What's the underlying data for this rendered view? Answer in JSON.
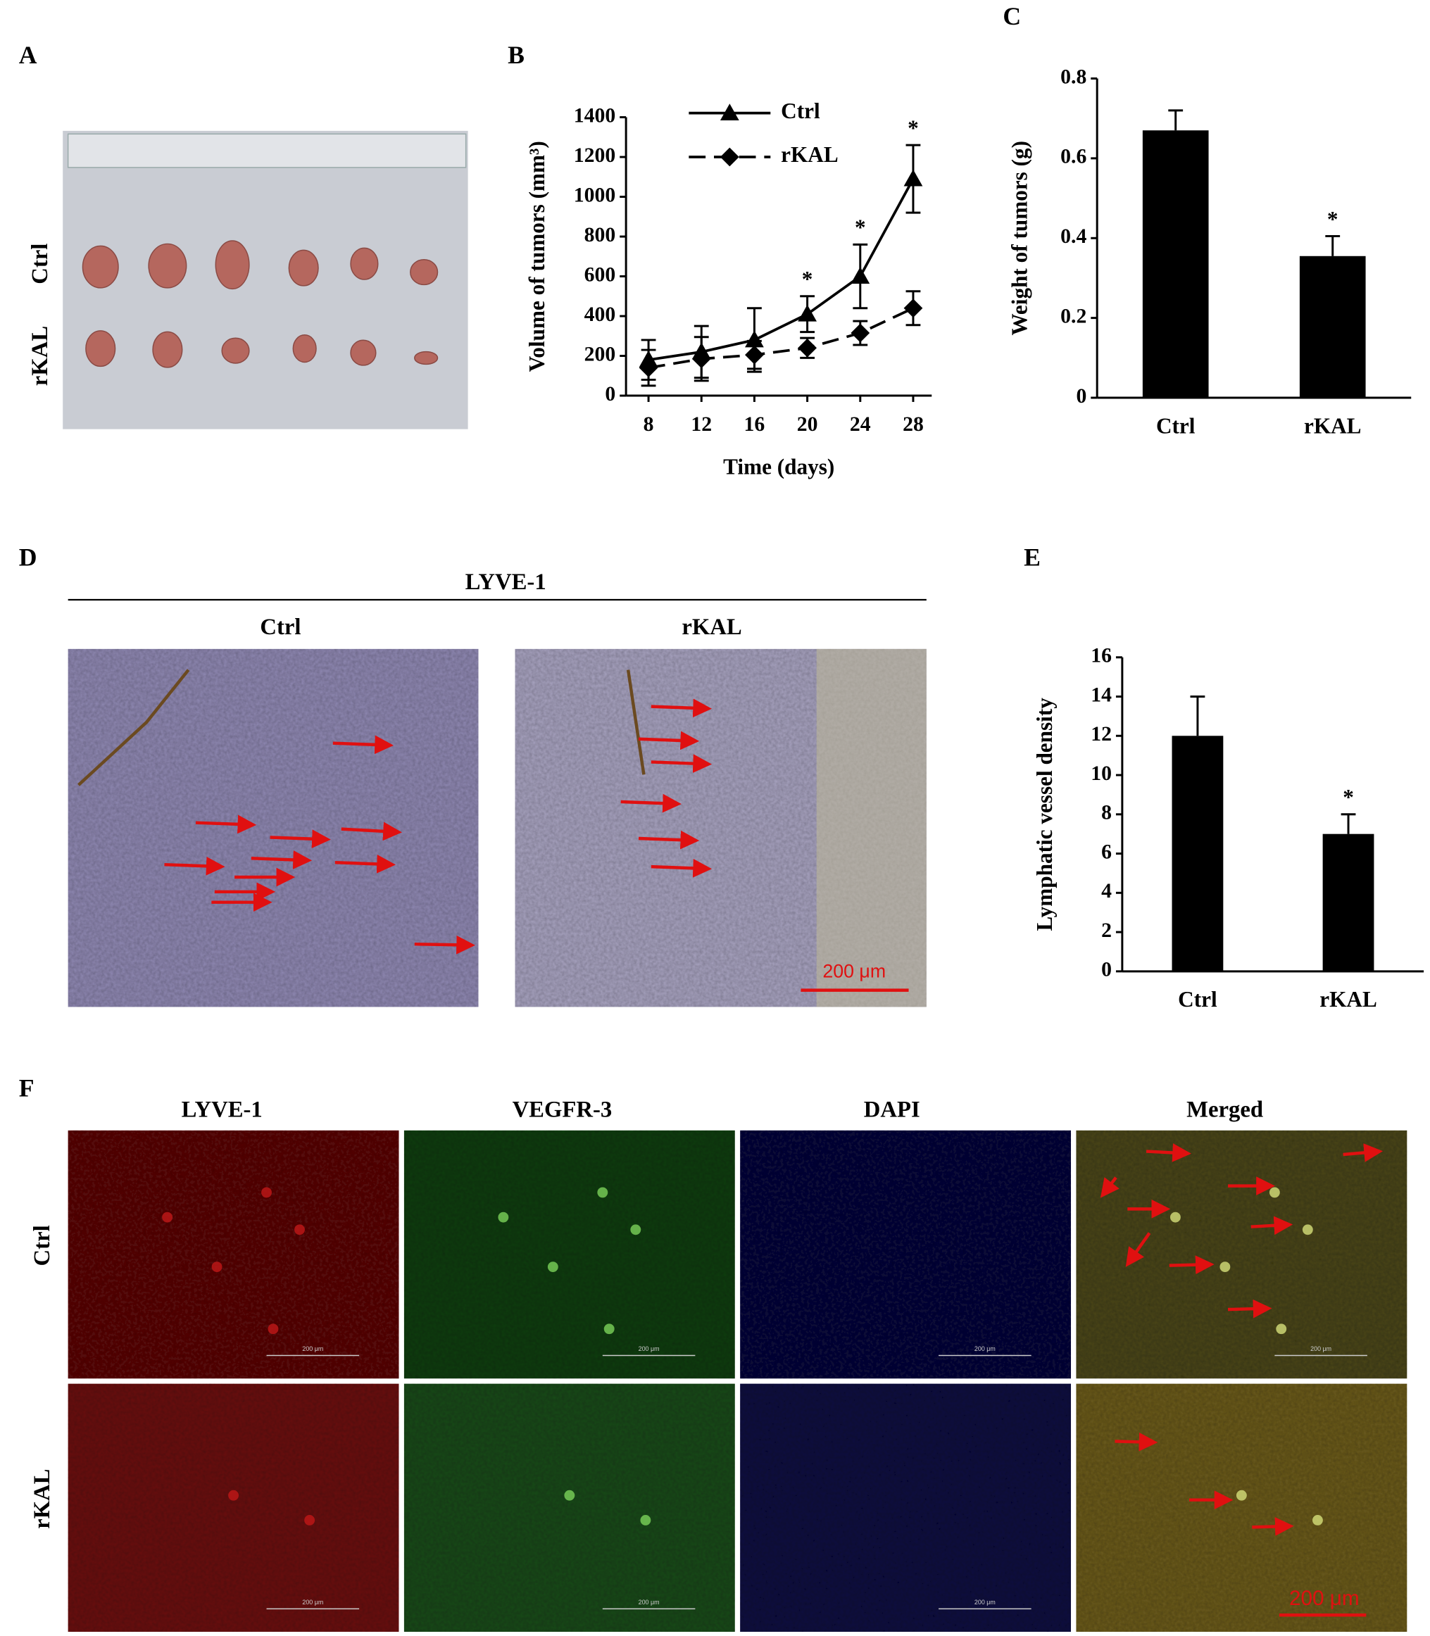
{
  "figure": {
    "panel_labels": [
      "A",
      "B",
      "C",
      "D",
      "E",
      "F"
    ],
    "panel_a": {
      "row_labels": [
        "Ctrl",
        "rKAL"
      ]
    },
    "panel_d": {
      "title": "LYVE-1",
      "column_labels": [
        "Ctrl",
        "rKAL"
      ],
      "scale_bar": "200 μm"
    },
    "panel_f": {
      "column_labels": [
        "LYVE-1",
        "VEGFR-3",
        "DAPI",
        "Merged"
      ],
      "row_labels": [
        "Ctrl",
        "rKAL"
      ],
      "scale_bar": "200 μm",
      "small_scale_bar": "200 μm"
    }
  },
  "chart_data": [
    {
      "type": "line",
      "x": [
        8,
        12,
        16,
        20,
        24,
        28
      ],
      "xlim": [
        6.3,
        29.4
      ],
      "xticks": [
        8,
        12,
        16,
        20,
        24,
        28
      ],
      "ylim": [
        0,
        1400
      ],
      "yticks": [
        0,
        200,
        400,
        600,
        800,
        1000,
        1200,
        1400
      ],
      "xlabel": "Time (days)",
      "ylabel": "Volume of tumors (mm³)",
      "legend": "upper left",
      "series": [
        {
          "name": "Ctrl",
          "color": "#000000",
          "marker": "triangle",
          "dash": "solid",
          "values": [
            180,
            220,
            280,
            410,
            600,
            1090
          ],
          "errors": [
            100,
            130,
            160,
            90,
            160,
            170
          ],
          "significance": [
            null,
            null,
            null,
            "*",
            "*",
            "*"
          ]
        },
        {
          "name": "rKAL",
          "color": "#000000",
          "marker": "diamond",
          "dash": "dashed",
          "values": [
            140,
            185,
            205,
            240,
            315,
            440
          ],
          "errors": [
            90,
            110,
            70,
            50,
            60,
            85
          ]
        }
      ]
    },
    {
      "type": "bar",
      "categories": [
        "Ctrl",
        "rKAL"
      ],
      "values": [
        0.67,
        0.355
      ],
      "errors": [
        0.05,
        0.05
      ],
      "significance": [
        null,
        "*"
      ],
      "color": "#000000",
      "ylim": [
        0,
        0.8
      ],
      "yticks": [
        0,
        0.2,
        0.4,
        0.6,
        0.8
      ],
      "ylabel": "Weight of tumors (g)"
    },
    {
      "type": "bar",
      "categories": [
        "Ctrl",
        "rKAL"
      ],
      "values": [
        12,
        7
      ],
      "errors": [
        2,
        1
      ],
      "significance": [
        null,
        "*"
      ],
      "color": "#000000",
      "ylim": [
        0,
        16
      ],
      "yticks": [
        0,
        2,
        4,
        6,
        8,
        10,
        12,
        14,
        16
      ],
      "ylabel": "Lymphatic vessel density"
    }
  ]
}
